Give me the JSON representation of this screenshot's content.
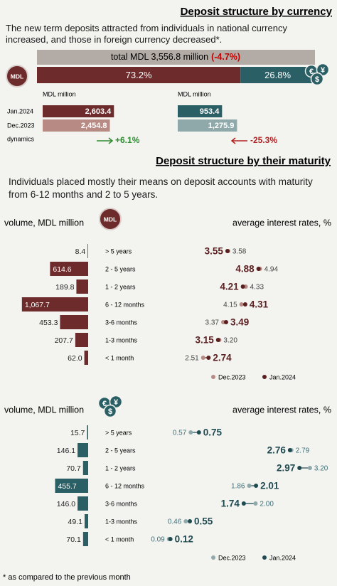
{
  "currency": {
    "title": "Deposit structure by currency",
    "text": "The new term deposits attracted from individuals in national currency increased, and those in foreign currency decreased*.",
    "total_label": "total MDL 3,556.8 million",
    "total_change": "(-4.7%)",
    "mdl_icon": "MDL",
    "fx_icon": [
      "€",
      "¥",
      "$"
    ]
  },
  "maturity": {
    "title": "Deposit structure by their maturity",
    "text": "Individuals placed mostly their means on deposit accounts with maturity from 6-12 months and 2 to 5 years."
  },
  "footnote": "* as compared to the previous month",
  "chart_data": [
    {
      "type": "share",
      "values": [
        73.2,
        26.8
      ],
      "value_labels": [
        "73.2%",
        "26.8%"
      ],
      "colors": [
        "#6e2b2b",
        "#2b5f66"
      ]
    },
    {
      "type": "hbar",
      "unit_label": "MDL million",
      "categories": [
        "Jan.2024",
        "Dec.2023"
      ],
      "values": [
        2603.4,
        2454.8
      ],
      "value_labels": [
        "2,603.4",
        "2,454.8"
      ],
      "colors": [
        "#6e2b2b",
        "#b88a84"
      ],
      "xlim": [
        0,
        2700
      ],
      "change_title": "dynamics",
      "change_label": "+6.1%",
      "change_color": "#2e8b2e"
    },
    {
      "type": "hbar",
      "unit_label": "MDL million",
      "values": [
        953.4,
        1275.9
      ],
      "value_labels": [
        "953.4",
        "1,275.9"
      ],
      "colors": [
        "#2b5f66",
        "#8fa9ab"
      ],
      "xlim": [
        0,
        1300
      ],
      "change_label": "-25.3%",
      "change_color": "#b22222"
    },
    {
      "type": "dumbbell",
      "icon": "mdl",
      "volume_title": "volume, MDL million",
      "rate_title": "average interest rates, %",
      "categories": [
        "> 5 years",
        "2 - 5 years",
        "1 - 2 years",
        "6 - 12 months",
        "3-6 months",
        "1-3 months",
        "< 1 month"
      ],
      "values": [
        8.4,
        614.6,
        189.8,
        1067.7,
        453.3,
        207.7,
        62.0
      ],
      "value_labels": [
        "8.4",
        "614.6",
        "189.8",
        "1,067.7",
        "453.3",
        "207.7",
        "62.0"
      ],
      "color": "#6e2b2b",
      "xlim": [
        0,
        1100
      ],
      "rlim": [
        2,
        5.5
      ],
      "series": [
        {
          "name": "Dec.2023",
          "color": "#b88a84",
          "values": [
            3.58,
            4.94,
            4.33,
            4.15,
            3.37,
            3.2,
            2.51
          ],
          "value_labels": [
            "3.58",
            "4.94",
            "4.33",
            "4.15",
            "3.37",
            "3.20",
            "2.51"
          ]
        },
        {
          "name": "Jan.2024",
          "color": "#5a1f1f",
          "values": [
            3.55,
            4.88,
            4.21,
            4.31,
            3.49,
            3.15,
            2.74
          ],
          "value_labels": [
            "3.55",
            "4.88",
            "4.21",
            "4.31",
            "3.49",
            "3.15",
            "2.74"
          ]
        }
      ]
    },
    {
      "type": "dumbbell",
      "icon": "fx",
      "volume_title": "volume, MDL million",
      "rate_title": "average interest rates, %",
      "categories": [
        "> 5 years",
        "2 - 5 years",
        "1 - 2 years",
        "6 - 12 months",
        "3-6 months",
        "1-3 months",
        "< 1 month"
      ],
      "values": [
        15.7,
        146.1,
        70.7,
        455.7,
        146.0,
        49.1,
        70.1
      ],
      "value_labels": [
        "15.7",
        "146.1",
        "70.7",
        "455.7",
        "146.0",
        "49.1",
        "70.1"
      ],
      "color": "#2b5f66",
      "xlim": [
        0,
        940
      ],
      "rlim": [
        0,
        3.5
      ],
      "series": [
        {
          "name": "Dec.2023",
          "color": "#8fa9ab",
          "values": [
            0.57,
            2.79,
            3.2,
            1.86,
            2.0,
            0.46,
            0.09
          ],
          "value_labels": [
            "0.57",
            "2.79",
            "3.20",
            "1.86",
            "2.00",
            "0.46",
            "0.09"
          ]
        },
        {
          "name": "Jan.2024",
          "color": "#1f4a50",
          "values": [
            0.75,
            2.76,
            2.97,
            2.01,
            1.74,
            0.55,
            0.12
          ],
          "value_labels": [
            "0.75",
            "2.76",
            "2.97",
            "2.01",
            "1.74",
            "0.55",
            "0.12"
          ]
        }
      ]
    }
  ]
}
